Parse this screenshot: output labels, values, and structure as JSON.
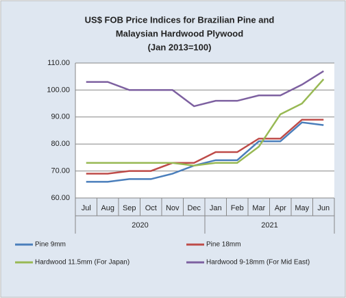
{
  "chart_data": {
    "type": "line",
    "title": [
      "US$ FOB Price Indices for Brazilian Pine and",
      "Malaysian Hardwood Plywood",
      "(Jan 2013=100)"
    ],
    "categories": [
      "Jul",
      "Aug",
      "Sep",
      "Oct",
      "Nov",
      "Dec",
      "Jan",
      "Feb",
      "Mar",
      "Apr",
      "May",
      "Jun"
    ],
    "years": [
      "2020",
      "2021"
    ],
    "series": [
      {
        "name": "Pine 9mm",
        "color": "#4a7ebb",
        "values": [
          66,
          66,
          67,
          67,
          69,
          72,
          74,
          74,
          81,
          81,
          88,
          87
        ]
      },
      {
        "name": "Pine 18mm",
        "color": "#be4b48",
        "values": [
          69,
          69,
          70,
          70,
          73,
          73,
          77,
          77,
          82,
          82,
          89,
          89
        ]
      },
      {
        "name": "Hardwood 11.5mm (For Japan)",
        "color": "#98b954",
        "values": [
          73,
          73,
          73,
          73,
          73,
          72,
          73,
          73,
          79,
          91,
          95,
          104
        ]
      },
      {
        "name": "Hardwood 9-18mm (For Mid East)",
        "color": "#7d60a0",
        "values": [
          103,
          103,
          100,
          100,
          100,
          94,
          96,
          96,
          98,
          98,
          102,
          107
        ]
      }
    ],
    "ylim": [
      60,
      110
    ],
    "yticks": [
      {
        "value": 60,
        "label": "60.00"
      },
      {
        "value": 70,
        "label": "70.00"
      },
      {
        "value": 80,
        "label": "80.00"
      },
      {
        "value": 90,
        "label": "90.00"
      },
      {
        "value": 100,
        "label": "100.00"
      },
      {
        "value": 110,
        "label": "110.00"
      }
    ],
    "grid": true
  }
}
